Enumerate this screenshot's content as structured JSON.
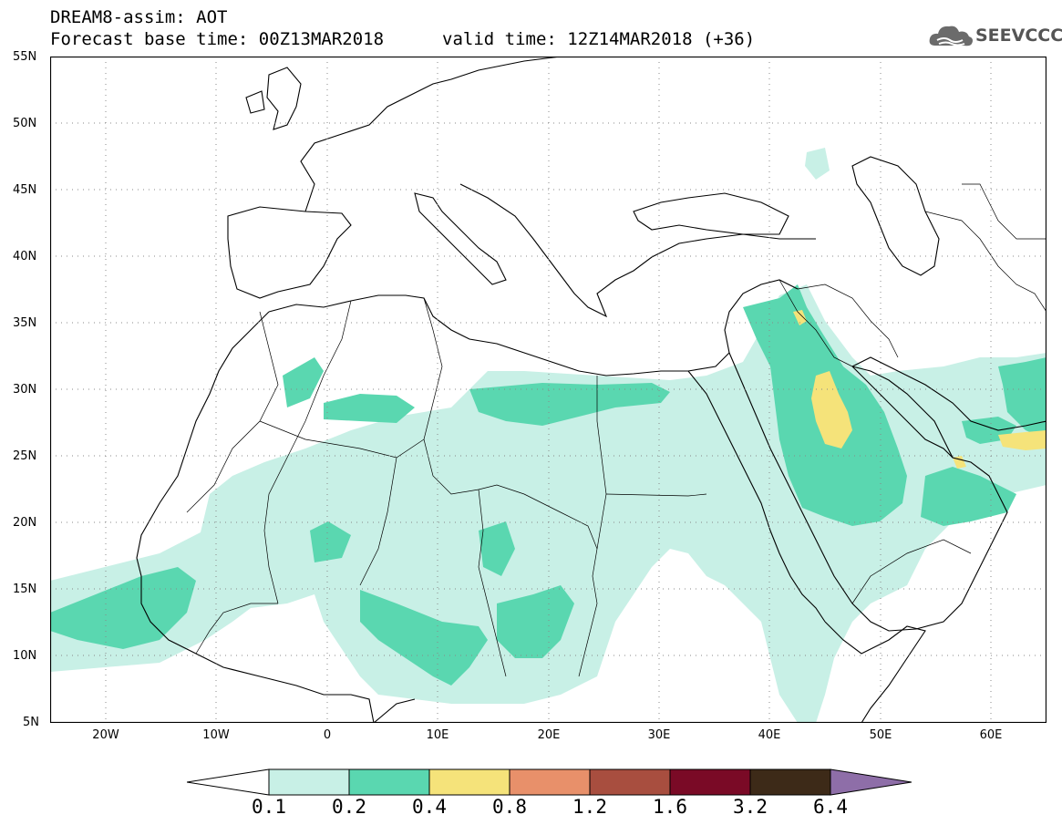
{
  "header": {
    "model": "DREAM8-assim: AOT",
    "base_time": "Forecast base time: 00Z13MAR2018",
    "valid_time": "valid time: 12Z14MAR2018 (+36)"
  },
  "logo": {
    "name": "SEEVCCC",
    "icon": "cloud-icon"
  },
  "axes": {
    "lat_labels": [
      "55N",
      "50N",
      "45N",
      "40N",
      "35N",
      "30N",
      "25N",
      "20N",
      "15N",
      "10N",
      "5N"
    ],
    "lon_labels": [
      "20W",
      "10W",
      "0",
      "10E",
      "20E",
      "30E",
      "40E",
      "50E",
      "60E"
    ],
    "lat_range": [
      5,
      55
    ],
    "lon_range": [
      -25,
      65
    ]
  },
  "colorbar": {
    "labels": [
      "0.1",
      "0.2",
      "0.4",
      "0.8",
      "1.2",
      "1.6",
      "3.2",
      "6.4"
    ],
    "colors": [
      "#ffffff",
      "#c8f0e6",
      "#5ad7b0",
      "#f5e37a",
      "#e8906a",
      "#a84e3f",
      "#7a0a26",
      "#3d2a18",
      "#8e6ea8"
    ]
  },
  "map_colors": {
    "ocean": "#ffffff",
    "coast": "#000000",
    "light": "#c8f0e6",
    "medium": "#5ad7b0",
    "high": "#f5e37a"
  }
}
